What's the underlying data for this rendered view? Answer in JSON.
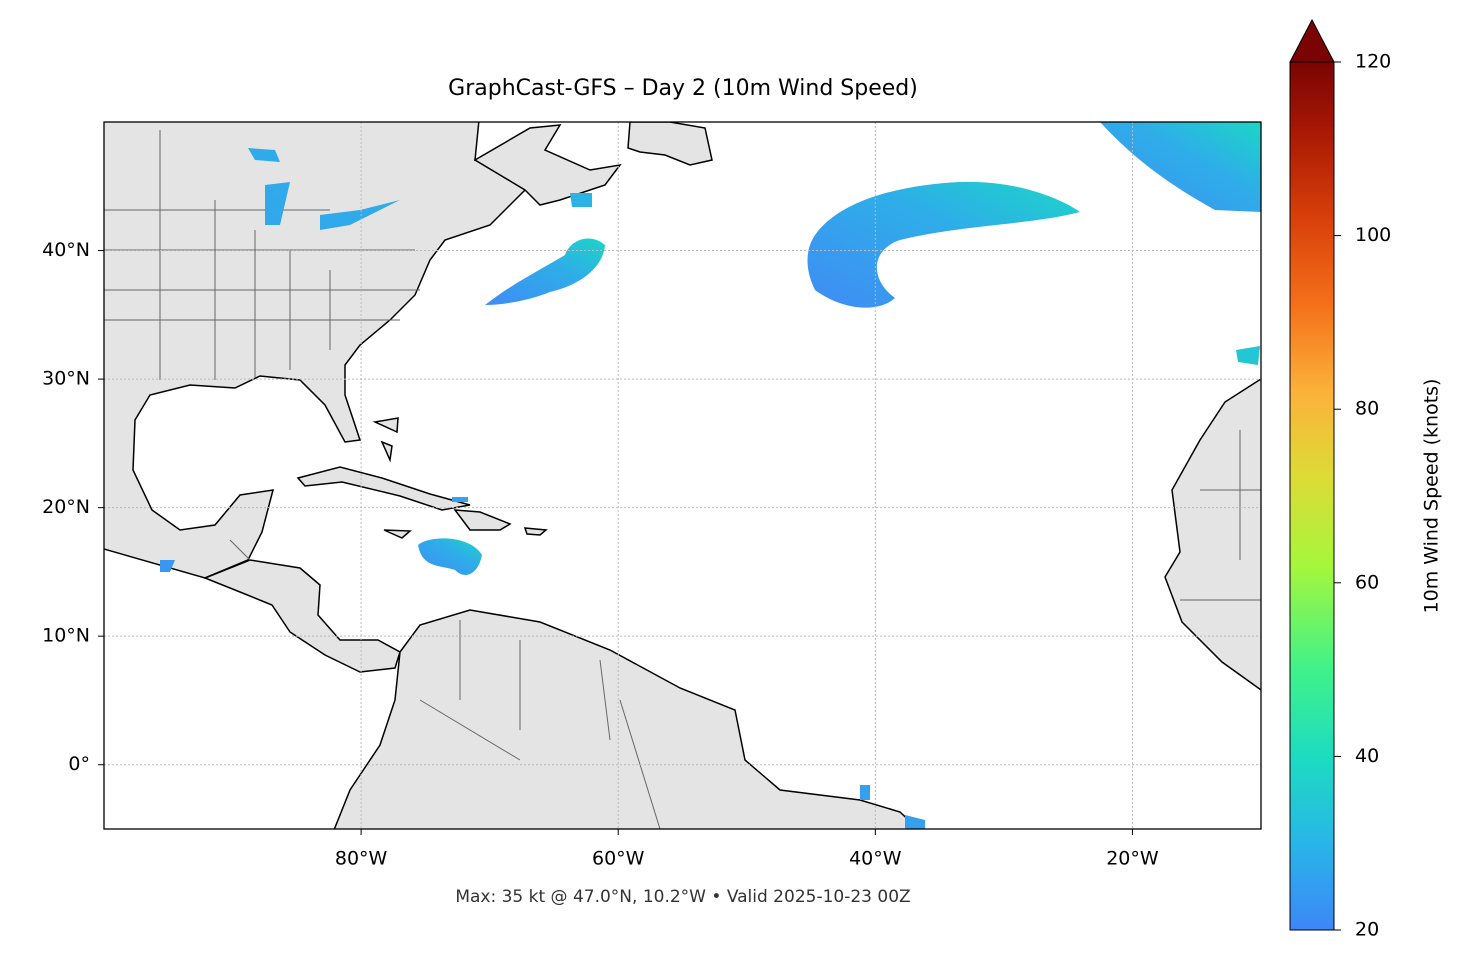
{
  "title": "GraphCast-GFS – Day 2 (10m Wind Speed)",
  "caption": "Max: 35 kt @ 47.0°N, 10.2°W • Valid 2025-10-23 00Z",
  "map": {
    "xlim": [
      -100,
      -10
    ],
    "ylim": [
      -5,
      50
    ],
    "xticks": [
      {
        "value": -80,
        "label": "80°W"
      },
      {
        "value": -60,
        "label": "60°W"
      },
      {
        "value": -40,
        "label": "40°W"
      },
      {
        "value": -20,
        "label": "20°W"
      }
    ],
    "yticks": [
      {
        "value": 0,
        "label": "0°"
      },
      {
        "value": 10,
        "label": "10°N"
      },
      {
        "value": 20,
        "label": "20°N"
      },
      {
        "value": 30,
        "label": "30°N"
      },
      {
        "value": 40,
        "label": "40°N"
      }
    ],
    "grid": true
  },
  "colorbar": {
    "label": "10m Wind Speed (knots)",
    "lim": [
      20,
      120
    ],
    "ticks": [
      20,
      40,
      60,
      80,
      100,
      120
    ]
  }
}
